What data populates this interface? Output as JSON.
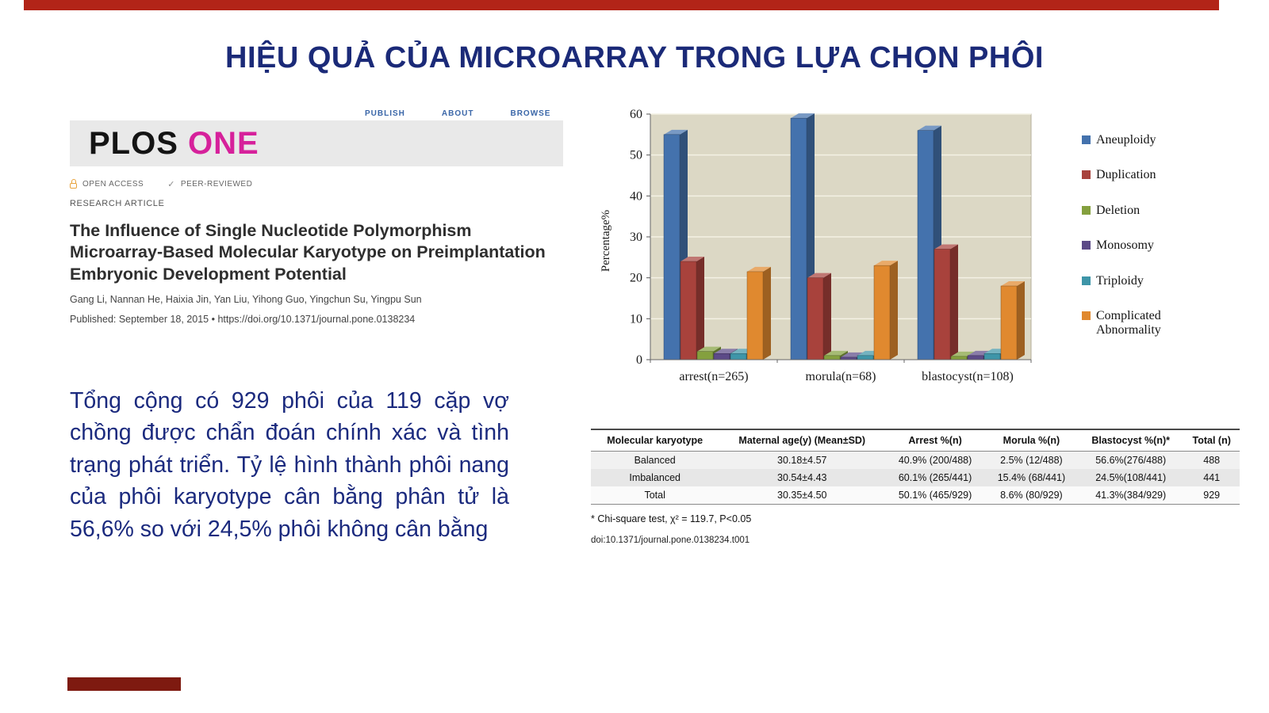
{
  "slide": {
    "title": "HIỆU QUẢ CỦA MICROARRAY TRONG LỰA CHỌN PHÔI",
    "body_text": "Tổng cộng có 929 phôi của 119 cặp vợ chồng được chẩn đoán chính xác và tình trạng phát triển. Tỷ lệ hình thành phôi nang của phôi karyotype cân bằng phân tử là 56,6% so với 24,5% phôi không cân bằng",
    "accent_color": "#b22418"
  },
  "article": {
    "journal_black": "PLOS",
    "journal_accent": "ONE",
    "nav": [
      "PUBLISH",
      "ABOUT",
      "BROWSE"
    ],
    "badges": [
      "OPEN ACCESS",
      "PEER-REVIEWED"
    ],
    "article_type": "RESEARCH ARTICLE",
    "title": "The Influence of Single Nucleotide Polymorphism Microarray-Based Molecular Karyotype on Preimplantation Embryonic Development Potential",
    "authors": "Gang Li, Nannan He, Haixia Jin, Yan Liu, Yihong Guo, Yingchun Su, Yingpu Sun",
    "published": "Published: September 18, 2015  •  https://doi.org/10.1371/journal.pone.0138234"
  },
  "chart_data": {
    "type": "bar",
    "title": "",
    "xlabel": "",
    "ylabel": "Percentage%",
    "ylim": [
      0,
      60
    ],
    "yticks": [
      0,
      10,
      20,
      30,
      40,
      50,
      60
    ],
    "grid": true,
    "legend_position": "right",
    "categories": [
      "arrest(n=265)",
      "morula(n=68)",
      "blastocyst(n=108)"
    ],
    "series": [
      {
        "name": "Aneuploidy",
        "color": "#4472ad",
        "values": [
          55,
          59,
          56
        ]
      },
      {
        "name": "Duplication",
        "color": "#a8423c",
        "values": [
          24,
          20,
          27
        ]
      },
      {
        "name": "Deletion",
        "color": "#84a03e",
        "values": [
          2,
          1,
          0.8
        ]
      },
      {
        "name": "Monosomy",
        "color": "#5c4a87",
        "values": [
          1.5,
          0.6,
          1
        ]
      },
      {
        "name": "Triploidy",
        "color": "#3e95a8",
        "values": [
          1.5,
          1,
          1.5
        ]
      },
      {
        "name": "Complicated Abnormality",
        "color": "#e0892f",
        "values": [
          21.5,
          23,
          18
        ]
      }
    ],
    "wall_color": "#dcd8c5"
  },
  "table": {
    "headers": [
      "Molecular karyotype",
      "Maternal age(y) (Mean±SD)",
      "Arrest %(n)",
      "Morula %(n)",
      "Blastocyst %(n)*",
      "Total (n)"
    ],
    "rows": [
      [
        "Balanced",
        "30.18±4.57",
        "40.9% (200/488)",
        "2.5% (12/488)",
        "56.6%(276/488)",
        "488"
      ],
      [
        "Imbalanced",
        "30.54±4.43",
        "60.1% (265/441)",
        "15.4% (68/441)",
        "24.5%(108/441)",
        "441"
      ],
      [
        "Total",
        "30.35±4.50",
        "50.1% (465/929)",
        "8.6% (80/929)",
        "41.3%(384/929)",
        "929"
      ]
    ],
    "footnote": "* Chi-square test, χ² = 119.7, P<0.05",
    "doi": "doi:10.1371/journal.pone.0138234.t001"
  }
}
